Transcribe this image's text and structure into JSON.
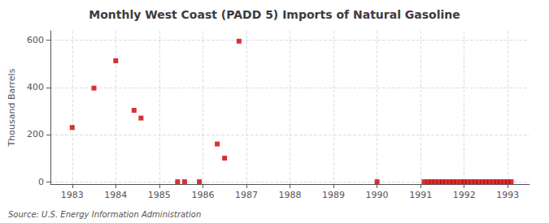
{
  "chart_data": {
    "type": "scatter",
    "title": "Monthly West Coast (PADD 5) Imports of Natural Gasoline",
    "ylabel": "Thousand Barrels",
    "source": "Source: U.S. Energy Information Administration",
    "color": "#cc0000",
    "marker": "square",
    "grid": true,
    "xlim": [
      1982.5,
      1993.5
    ],
    "ylim": [
      -10,
      640
    ],
    "xticks": [
      1983,
      1984,
      1985,
      1986,
      1987,
      1988,
      1989,
      1990,
      1991,
      1992,
      1993
    ],
    "yticks": [
      0,
      200,
      400,
      600
    ],
    "x": [
      1983.0,
      1983.5,
      1984.0,
      1984.42,
      1984.58,
      1985.42,
      1985.58,
      1985.92,
      1986.33,
      1986.5,
      1986.83,
      1990.0,
      1991.08,
      1991.17,
      1991.25,
      1991.33,
      1991.42,
      1991.5,
      1991.58,
      1991.67,
      1991.75,
      1991.83,
      1991.92,
      1992.0,
      1992.08,
      1992.17,
      1992.25,
      1992.33,
      1992.42,
      1992.5,
      1992.58,
      1992.67,
      1992.75,
      1992.83,
      1992.92,
      1993.0,
      1993.08
    ],
    "values": [
      230,
      397,
      513,
      303,
      270,
      0,
      0,
      0,
      160,
      100,
      596,
      0,
      0,
      0,
      0,
      0,
      0,
      0,
      0,
      0,
      0,
      0,
      0,
      0,
      0,
      0,
      0,
      0,
      0,
      0,
      0,
      0,
      0,
      0,
      0,
      0,
      0
    ]
  }
}
